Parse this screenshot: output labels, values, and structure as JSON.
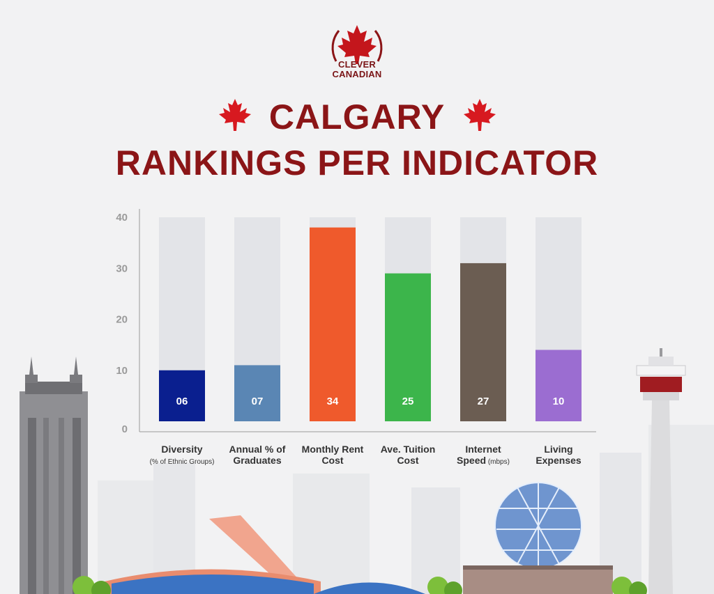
{
  "brand": {
    "line1": "CLEVER",
    "line2": "CANADIAN"
  },
  "header": {
    "title_line1": "CALGARY",
    "title_line2": "RANKINGS PER INDICATOR"
  },
  "colors": {
    "title": "#8b1517",
    "track": "#e3e4e8",
    "axis": "#9a9a9a"
  },
  "chart_data": {
    "type": "bar",
    "title": "CALGARY RANKINGS PER INDICATOR",
    "ylim": [
      0,
      40
    ],
    "yticks": [
      "0",
      "10",
      "20",
      "30",
      "40"
    ],
    "grid": false,
    "categories": [
      {
        "line1": "Diversity",
        "line2": "(% of Ethnic Groups)"
      },
      {
        "line1": "Annual % of",
        "line2": "Graduates"
      },
      {
        "line1": "Monthly Rent",
        "line2": "Cost"
      },
      {
        "line1": "Ave. Tuition",
        "line2": "Cost"
      },
      {
        "line1": "Internet",
        "line2": "Speed",
        "line2_suffix": " (mbps)"
      },
      {
        "line1": "Living",
        "line2": "Expenses"
      }
    ],
    "values": [
      6,
      7,
      34,
      25,
      27,
      10
    ],
    "data_labels": [
      "06",
      "07",
      "34",
      "25",
      "27",
      "10"
    ],
    "bar_colors": [
      "#0a1f8f",
      "#5a86b4",
      "#ef5a2c",
      "#3cb54b",
      "#6b5d52",
      "#9b6dd1"
    ]
  }
}
